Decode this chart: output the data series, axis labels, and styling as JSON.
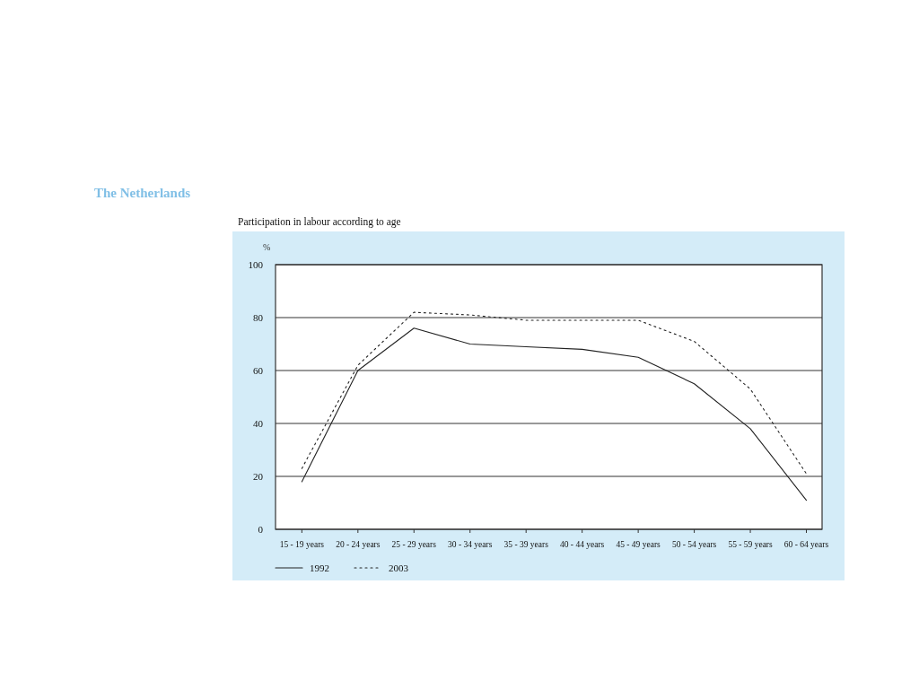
{
  "chart_data": {
    "type": "line",
    "title": "The Netherlands",
    "subtitle": "Participation in labour according to age",
    "ylabel": "%",
    "categories": [
      "15 - 19 years",
      "20 - 24 years",
      "25 - 29 years",
      "30 - 34 years",
      "35 - 39 years",
      "40 - 44 years",
      "45 - 49 years",
      "50 - 54 years",
      "55 - 59 years",
      "60 - 64 years"
    ],
    "series": [
      {
        "name": "1992",
        "color": "#222222",
        "line_style": "solid",
        "values": [
          18,
          60,
          76,
          70,
          69,
          68,
          65,
          55,
          38,
          11
        ]
      },
      {
        "name": "2003",
        "color": "#222222",
        "line_style": "dotted",
        "values": [
          23,
          62,
          82,
          81,
          79,
          79,
          79,
          71,
          53,
          21
        ]
      }
    ],
    "ylim": [
      0,
      100
    ],
    "yticks": [
      0,
      20,
      40,
      60,
      80,
      100
    ],
    "grid": "y",
    "legend": "bottom"
  }
}
